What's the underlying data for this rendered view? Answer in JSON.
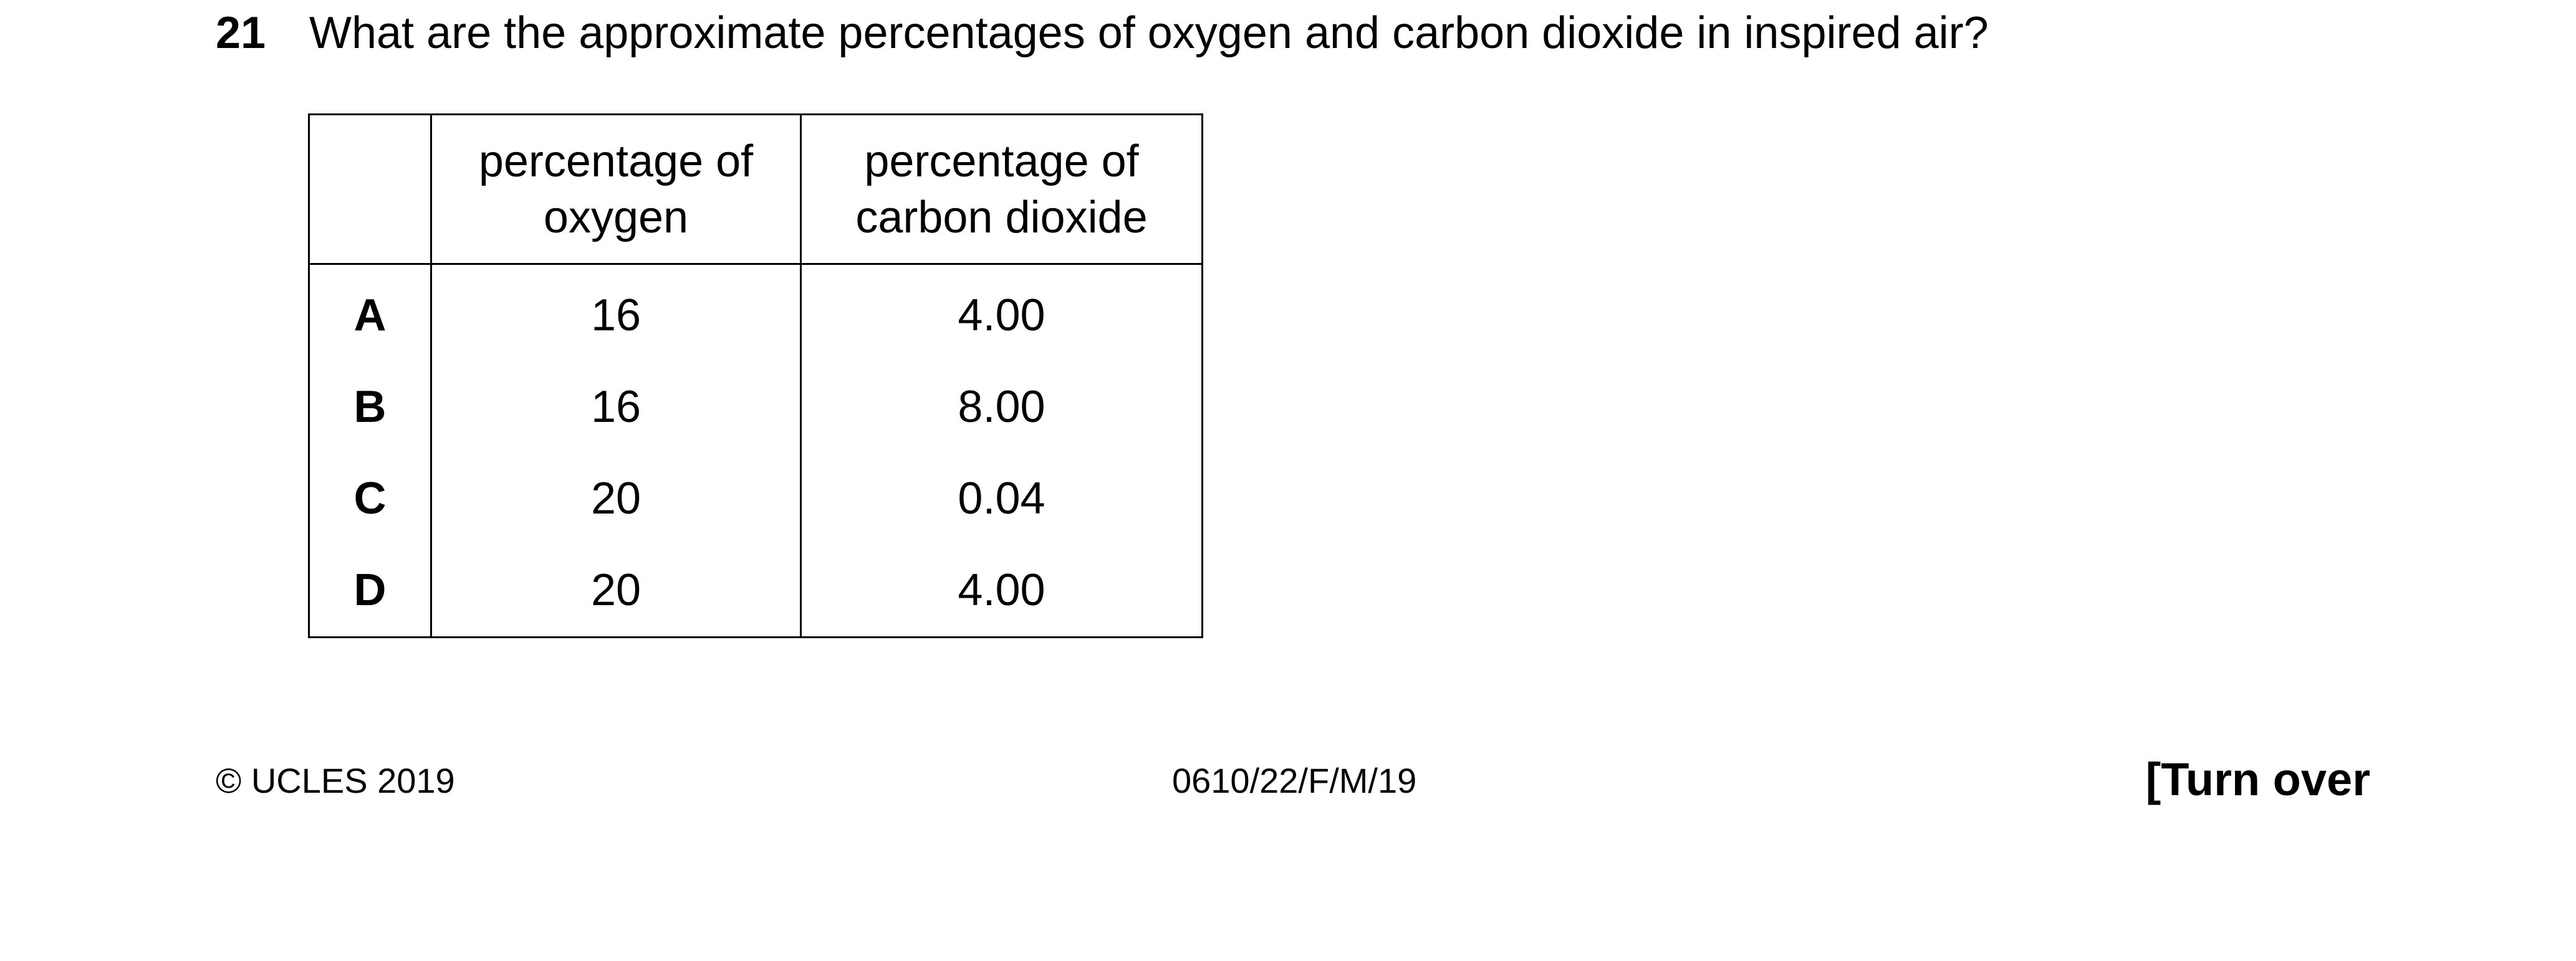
{
  "question": {
    "number": "21",
    "text": "What are the approximate percentages of oxygen and carbon dioxide in inspired air?"
  },
  "table": {
    "headers": {
      "letter": "",
      "oxygen": [
        "percentage of",
        "oxygen"
      ],
      "carbon_dioxide": [
        "percentage of",
        "carbon dioxide"
      ]
    },
    "rows": [
      {
        "letter": "A",
        "oxygen": "16",
        "carbon_dioxide": "4.00"
      },
      {
        "letter": "B",
        "oxygen": "16",
        "carbon_dioxide": "8.00"
      },
      {
        "letter": "C",
        "oxygen": "20",
        "carbon_dioxide": "0.04"
      },
      {
        "letter": "D",
        "oxygen": "20",
        "carbon_dioxide": "4.00"
      }
    ]
  },
  "footer": {
    "copyright": "© UCLES 2019",
    "code": "0610/22/F/M/19",
    "turn_over": "[Turn over"
  }
}
